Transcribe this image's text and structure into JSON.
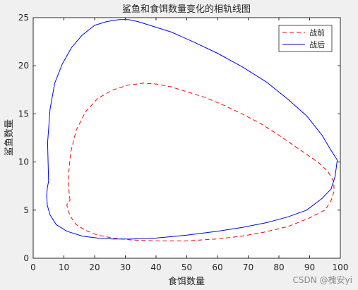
{
  "watermark": "CSDN @槐安yi",
  "chart_data": {
    "type": "line",
    "title": "鲨鱼和食饵数量变化的相轨线图",
    "xlabel": "食饵数量",
    "ylabel": "鲨鱼数量",
    "xlim": [
      0,
      100
    ],
    "ylim": [
      0,
      25
    ],
    "xticks": [
      0,
      10,
      20,
      30,
      40,
      50,
      60,
      70,
      80,
      90,
      100
    ],
    "yticks": [
      0,
      5,
      10,
      15,
      20,
      25
    ],
    "grid": false,
    "legend_position": "top-right",
    "series": [
      {
        "name": "战前",
        "color": "#ff0000",
        "style": "dashed",
        "x": [
          12,
          11.3,
          12.2,
          14,
          17,
          21,
          26,
          31,
          36,
          40,
          45,
          50,
          56,
          62,
          68,
          74,
          79,
          84,
          89,
          93,
          96,
          97.8,
          98,
          97,
          95,
          90,
          83,
          75,
          68,
          60,
          50,
          40,
          32,
          26,
          21,
          17,
          14,
          12.2,
          11.3,
          11,
          11.2,
          12
        ],
        "y": [
          6,
          8,
          11,
          13.3,
          15.2,
          16.6,
          17.5,
          18,
          18.2,
          18.1,
          17.8,
          17.3,
          16.7,
          15.9,
          15,
          14,
          13,
          11.9,
          10.8,
          9.9,
          9,
          8,
          7,
          6,
          5,
          4.2,
          3.3,
          2.7,
          2.3,
          2,
          1.8,
          1.8,
          1.9,
          2.1,
          2.4,
          2.9,
          3.5,
          4.3,
          5,
          5.5,
          5.8,
          6
        ]
      },
      {
        "name": "战后",
        "color": "#0000ff",
        "style": "solid",
        "x": [
          5,
          4.7,
          5.5,
          7,
          9.5,
          12.5,
          16,
          20,
          24,
          28,
          31,
          34,
          38,
          45,
          52,
          60,
          68,
          76,
          83,
          89,
          94,
          97,
          98.2,
          99,
          98.3,
          97,
          94,
          89,
          83,
          76,
          68,
          60,
          50,
          40,
          32,
          26,
          21,
          16,
          11,
          7.5,
          5.5,
          4.6,
          4.4,
          4.6,
          5
        ],
        "y": [
          8,
          12,
          15.5,
          18.2,
          20.2,
          21.9,
          23.2,
          24.2,
          24.6,
          24.8,
          24.8,
          24.6,
          24.2,
          23.5,
          22.5,
          21.3,
          19.9,
          18.3,
          16.5,
          14.8,
          12.8,
          11.2,
          10.6,
          10.2,
          8.5,
          7.2,
          6.2,
          5,
          4.3,
          3.7,
          3.2,
          2.8,
          2.4,
          2.1,
          2,
          2,
          2.1,
          2.3,
          2.8,
          3.5,
          4.5,
          5.5,
          6.5,
          7.3,
          8
        ]
      }
    ]
  }
}
